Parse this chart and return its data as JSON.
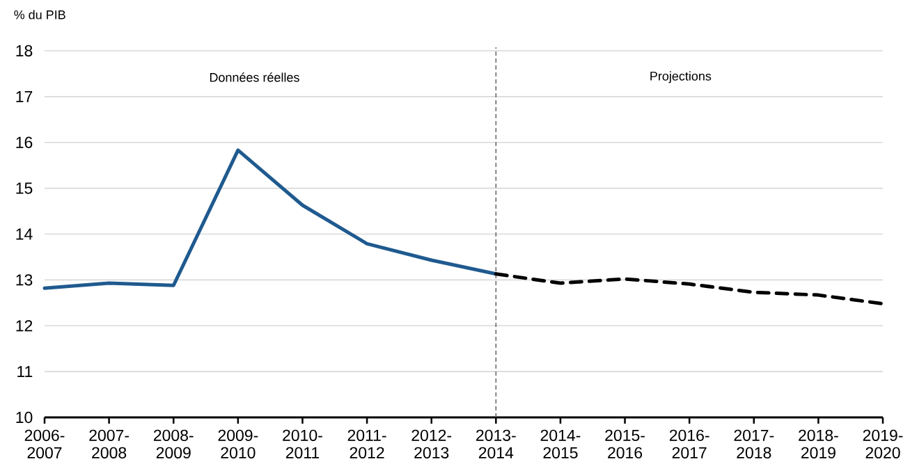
{
  "chart_data": {
    "type": "line",
    "ylabel": "% du PIB",
    "annotations": [
      "Données réelles",
      "Projections"
    ],
    "categories": [
      "2006-2007",
      "2007-2008",
      "2008-2009",
      "2009-2010",
      "2010-2011",
      "2011-2012",
      "2012-2013",
      "2013-2014",
      "2014-2015",
      "2015-2016",
      "2016-2017",
      "2017-2018",
      "2018-2019",
      "2019-2020"
    ],
    "series": [
      {
        "color": "#1f5a8f",
        "line_style": "solid",
        "values": [
          12.82,
          12.93,
          12.88,
          15.83,
          14.63,
          13.79,
          13.43,
          13.13,
          null,
          null,
          null,
          null,
          null,
          null
        ]
      },
      {
        "color": "#000000",
        "line_style": "dashed",
        "values": [
          null,
          null,
          null,
          null,
          null,
          null,
          null,
          13.13,
          12.93,
          13.02,
          12.91,
          12.73,
          12.67,
          12.48
        ]
      }
    ],
    "ylim": [
      10,
      18
    ],
    "yticks": [
      10,
      11,
      12,
      13,
      14,
      15,
      16,
      17,
      18
    ],
    "grid": "y",
    "ref_lines": [
      {
        "axis": "x",
        "value": "2013-2014",
        "color": "#595959",
        "line_style": "dashed"
      }
    ]
  }
}
